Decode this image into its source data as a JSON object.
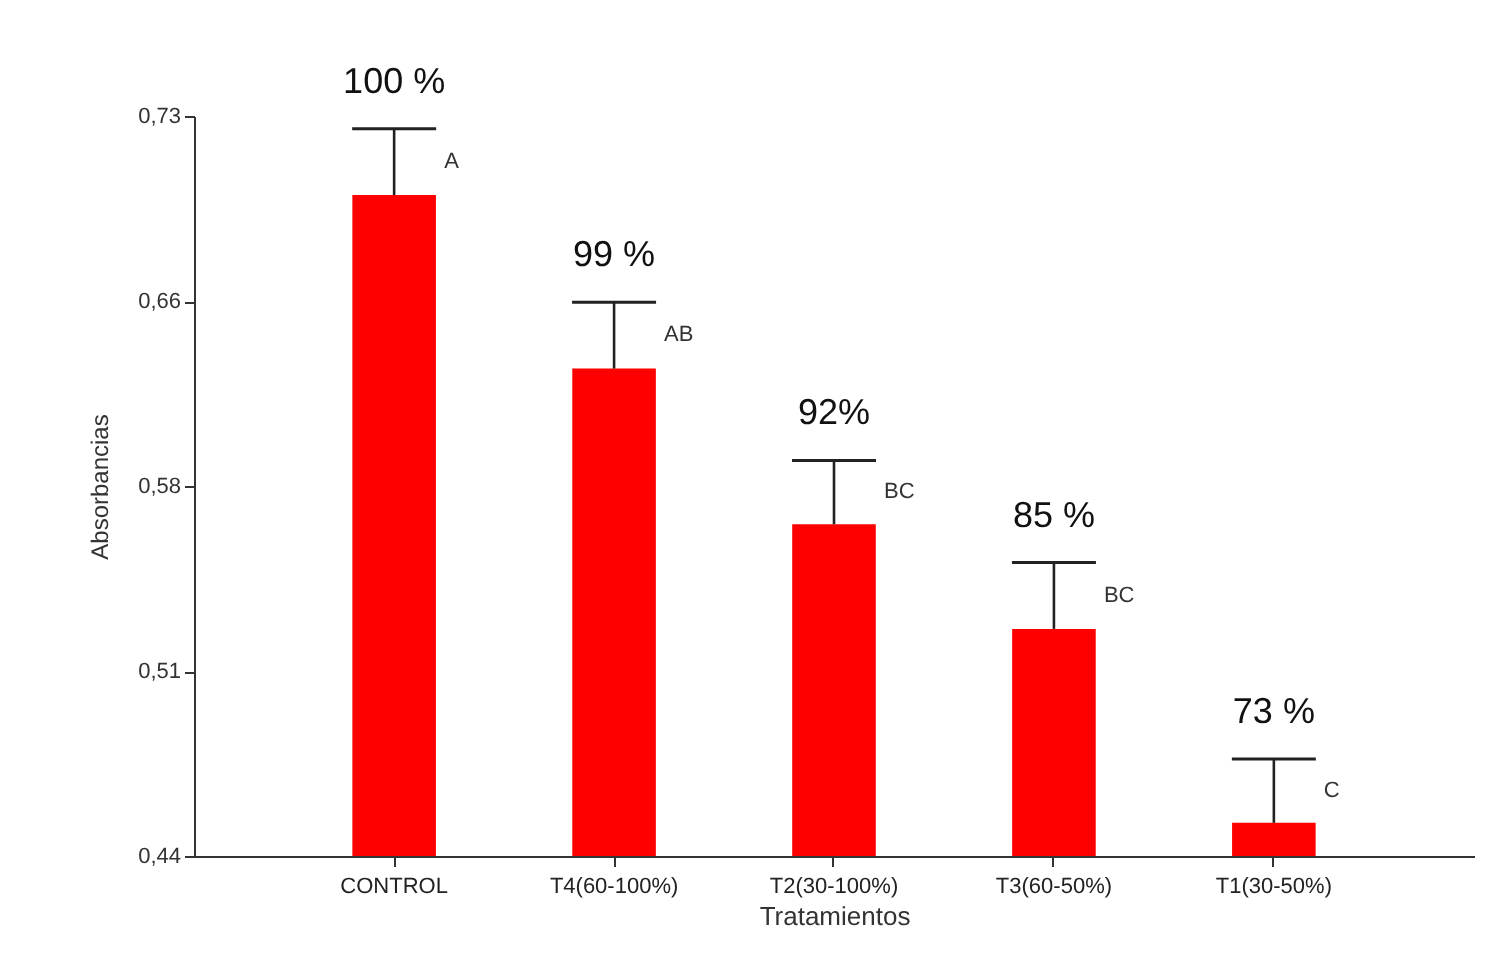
{
  "chart_data": {
    "type": "bar",
    "xlabel": "Tratamientos",
    "ylabel": "Absorbancias",
    "categories": [
      "CONTROL",
      "T4(60-100%)",
      "T2(30-100%)",
      "T3(60-50%)",
      "T1(30-50%)"
    ],
    "values": [
      0.699,
      0.631,
      0.57,
      0.529,
      0.453
    ],
    "errors": [
      [
        0.699,
        0.725
      ],
      [
        0.631,
        0.657
      ],
      [
        0.57,
        0.595
      ],
      [
        0.529,
        0.555
      ],
      [
        0.453,
        0.478
      ]
    ],
    "color": "#ff0000",
    "ylim": [
      0.44,
      0.73
    ],
    "yticks": [
      {
        "value": 0.44,
        "label": "0,44"
      },
      {
        "value": 0.5125,
        "label": "0,51"
      },
      {
        "value": 0.585,
        "label": "0,58"
      },
      {
        "value": 0.6575,
        "label": "0,66"
      },
      {
        "value": 0.73,
        "label": "0,73"
      }
    ],
    "grid": false,
    "annotations": [
      {
        "text": "100 %",
        "x": "CONTROL",
        "y": 0.725
      },
      {
        "text": "99 %",
        "x": "T4(60-100%)",
        "y": 0.657
      },
      {
        "text": "92%",
        "x": "T2(30-100%)",
        "y": 0.595
      },
      {
        "text": "85 %",
        "x": "T3(60-50%)",
        "y": 0.555
      },
      {
        "text": "73 %",
        "x": "T1(30-50%)",
        "y": 0.478
      },
      "A",
      "AB",
      "BC",
      "BC",
      "C"
    ]
  }
}
